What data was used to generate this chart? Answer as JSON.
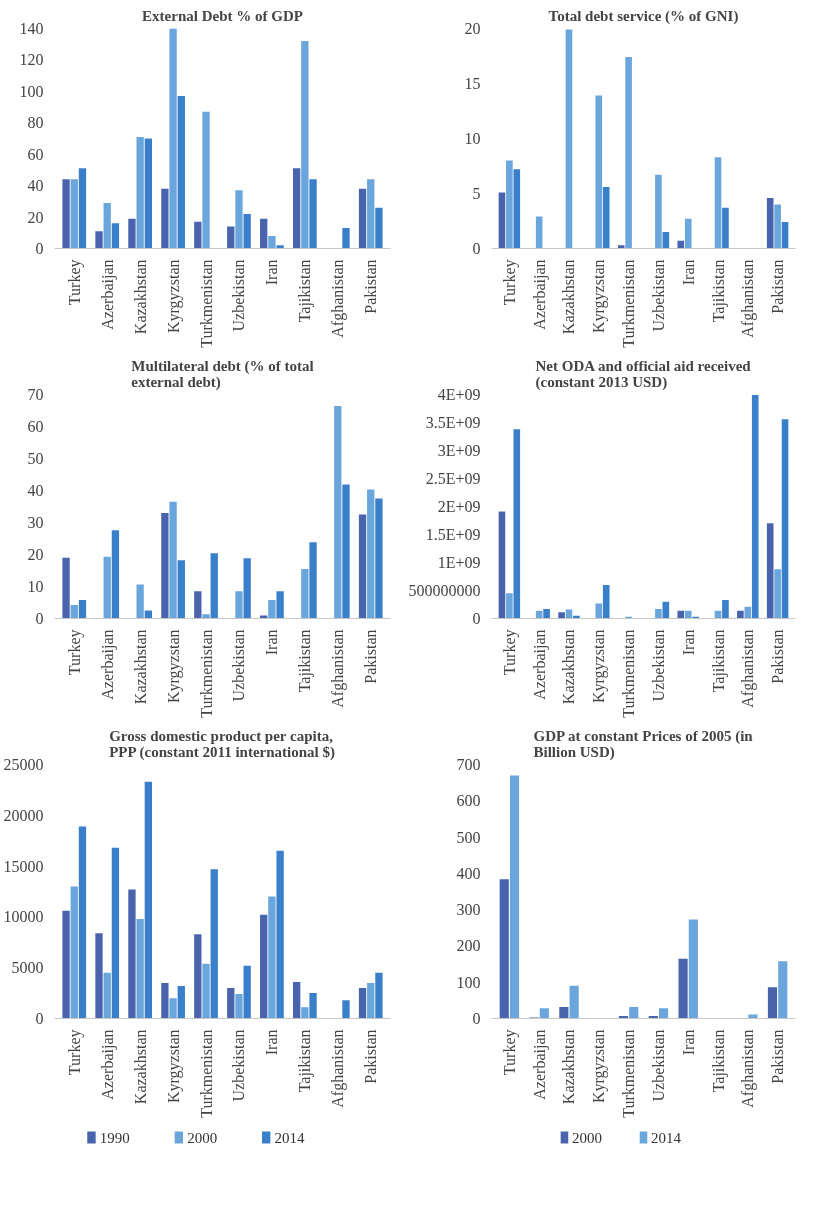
{
  "chart_data": [
    {
      "type": "bar",
      "title": "External Debt % of GDP",
      "categories": [
        "Turkey",
        "Azerbaijan",
        "Kazakhstan",
        "Kyrgyzstan",
        "Turkmenistan",
        "Uzbekistan",
        "Iran",
        "Tajikistan",
        "Afghanistan",
        "Pakistan"
      ],
      "ylim": [
        0,
        140
      ],
      "yticks": [
        0,
        20,
        40,
        60,
        80,
        100,
        120,
        140
      ],
      "series": [
        {
          "color": "#4a63ad",
          "values": [
            44,
            11,
            19,
            38,
            17,
            14,
            19,
            51,
            null,
            38
          ]
        },
        {
          "color": "#6aa6dc",
          "values": [
            44,
            29,
            71,
            140,
            87,
            37,
            8,
            132,
            null,
            44
          ]
        },
        {
          "color": "#3a7fc9",
          "values": [
            51,
            16,
            70,
            97,
            null,
            22,
            2,
            44,
            13,
            26
          ]
        }
      ]
    },
    {
      "type": "bar",
      "title": "Total debt service (% of GNI)",
      "categories": [
        "Turkey",
        "Azerbaijan",
        "Kazakhstan",
        "Kyrgyzstan",
        "Turkmenistan",
        "Uzbekistan",
        "Iran",
        "Tajikistan",
        "Afghanistan",
        "Pakistan"
      ],
      "ylim": [
        0,
        20
      ],
      "yticks": [
        0,
        5,
        10,
        15,
        20
      ],
      "series": [
        {
          "color": "#4a63ad",
          "values": [
            5.1,
            null,
            null,
            null,
            0.3,
            null,
            0.7,
            null,
            null,
            4.6
          ]
        },
        {
          "color": "#6aa6dc",
          "values": [
            8.0,
            2.9,
            19.9,
            13.9,
            17.4,
            6.7,
            2.7,
            8.3,
            null,
            4.0
          ]
        },
        {
          "color": "#3a7fc9",
          "values": [
            7.2,
            null,
            null,
            5.6,
            null,
            1.5,
            null,
            3.7,
            null,
            2.4
          ]
        }
      ]
    },
    {
      "type": "bar",
      "title": "Multilateral debt (% of total external debt)",
      "categories": [
        "Turkey",
        "Azerbaijan",
        "Kazakhstan",
        "Kyrgyzstan",
        "Turkmenistan",
        "Uzbekistan",
        "Iran",
        "Tajikistan",
        "Afghanistan",
        "Pakistan"
      ],
      "ylim": [
        0,
        70
      ],
      "yticks": [
        0,
        10,
        20,
        30,
        40,
        50,
        60,
        70
      ],
      "series": [
        {
          "color": "#4a63ad",
          "values": [
            19,
            null,
            null,
            33,
            8.5,
            null,
            0.9,
            null,
            null,
            32.5
          ]
        },
        {
          "color": "#6aa6dc",
          "values": [
            4.2,
            19.3,
            10.6,
            36.5,
            1.3,
            8.5,
            5.8,
            15.5,
            66.4,
            40.3
          ]
        },
        {
          "color": "#3a7fc9",
          "values": [
            5.8,
            27.6,
            2.5,
            18.2,
            20.4,
            18.8,
            8.5,
            23.8,
            41.9,
            37.5
          ]
        }
      ]
    },
    {
      "type": "bar",
      "title": "Net ODA and official aid received (constant 2013 USD)",
      "categories": [
        "Turkey",
        "Azerbaijan",
        "Kazakhstan",
        "Kyrgyzstan",
        "Turkmenistan",
        "Uzbekistan",
        "Iran",
        "Tajikistan",
        "Afghanistan",
        "Pakistan"
      ],
      "ylim": [
        0,
        4000000000
      ],
      "yticks": [
        0,
        500000000,
        {
          "value": 1000000000,
          "label": "1E+09"
        },
        {
          "value": 1500000000,
          "label": "1.5E+09"
        },
        {
          "value": 2000000000,
          "label": "2E+09"
        },
        {
          "value": 2500000000,
          "label": "2.5E+09"
        },
        {
          "value": 3000000000,
          "label": "3E+09"
        },
        {
          "value": 3500000000,
          "label": "3.5E+09"
        },
        {
          "value": 4000000000,
          "label": "4E+09"
        }
      ],
      "series": [
        {
          "color": "#4a63ad",
          "values": [
            1910000000,
            null,
            110000000,
            null,
            null,
            null,
            140000000,
            null,
            140000000,
            1700000000
          ]
        },
        {
          "color": "#6aa6dc",
          "values": [
            450000000,
            140000000,
            160000000,
            270000000,
            30000000,
            170000000,
            140000000,
            140000000,
            210000000,
            880000000
          ]
        },
        {
          "color": "#3a7fc9",
          "values": [
            3380000000,
            170000000,
            50000000,
            600000000,
            null,
            300000000,
            30000000,
            330000000,
            3990000000,
            3560000000
          ]
        }
      ]
    },
    {
      "type": "bar",
      "title": "Gross domestic product per capita, PPP (constant 2011 international $)",
      "categories": [
        "Turkey",
        "Azerbaijan",
        "Kazakhstan",
        "Kyrgyzstan",
        "Turkmenistan",
        "Uzbekistan",
        "Iran",
        "Tajikistan",
        "Afghanistan",
        "Pakistan"
      ],
      "ylim": [
        0,
        25000
      ],
      "yticks": [
        0,
        5000,
        10000,
        15000,
        20000,
        25000
      ],
      "legend": "bottom",
      "series": [
        {
          "name": "1990",
          "color": "#4a63ad",
          "values": [
            10600,
            8400,
            12700,
            3500,
            8300,
            3000,
            10200,
            3600,
            null,
            3000
          ]
        },
        {
          "name": "2000",
          "color": "#6aa6dc",
          "values": [
            13000,
            4500,
            9800,
            2000,
            5400,
            2400,
            12000,
            1100,
            null,
            3500
          ]
        },
        {
          "name": "2014",
          "color": "#3a7fc9",
          "values": [
            18900,
            16800,
            23300,
            3200,
            14700,
            5200,
            16500,
            2500,
            1800,
            4500
          ]
        }
      ]
    },
    {
      "type": "bar",
      "title": "GDP at constant Prices of 2005 (in Billion USD)",
      "categories": [
        "Turkey",
        "Azerbaijan",
        "Kazakhstan",
        "Kyrgyzstan",
        "Turkmenistan",
        "Uzbekistan",
        "Iran",
        "Tajikistan",
        "Afghanistan",
        "Pakistan"
      ],
      "ylim": [
        0,
        700
      ],
      "yticks": [
        0,
        100,
        200,
        300,
        400,
        500,
        600,
        700
      ],
      "legend": "bottom",
      "series": [
        {
          "name": "2000",
          "color": "#4a63ad",
          "values": [
            384,
            3,
            32,
            null,
            7,
            7,
            165,
            null,
            null,
            86
          ]
        },
        {
          "name": "2014",
          "color": "#6aa6dc",
          "values": [
            670,
            28,
            90,
            null,
            32,
            28,
            273,
            null,
            11,
            158
          ]
        }
      ]
    }
  ]
}
